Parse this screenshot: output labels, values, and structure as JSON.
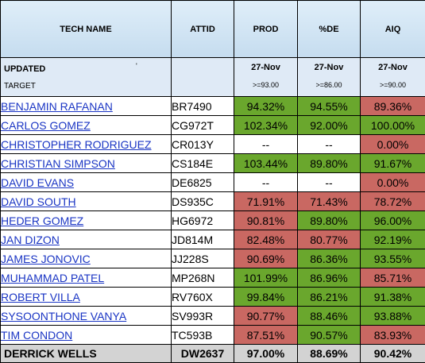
{
  "headers": {
    "tech_name": "TECH NAME",
    "attid": "ATTID",
    "prod": "PROD",
    "de": "%DE",
    "aiq": "AIQ"
  },
  "updated": {
    "label": "UPDATED",
    "target_label": "TARGET",
    "mark": "'",
    "prod_date": "27-Nov",
    "de_date": "27-Nov",
    "aiq_date": "27-Nov",
    "prod_target": ">=93.00",
    "de_target": ">=86.00",
    "aiq_target": ">=90.00"
  },
  "rows": [
    {
      "name": "BENJAMIN RAFANAN",
      "attid": "BR7490",
      "prod": "94.32%",
      "de": "94.55%",
      "aiq": "89.36%"
    },
    {
      "name": "CARLOS GOMEZ",
      "attid": "CG972T",
      "prod": "102.34%",
      "de": "92.00%",
      "aiq": "100.00%"
    },
    {
      "name": "CHRISTOPHER RODRIGUEZ",
      "attid": "CR013Y",
      "prod": "--",
      "de": "--",
      "aiq": "0.00%"
    },
    {
      "name": "CHRISTIAN SIMPSON",
      "attid": "CS184E",
      "prod": "103.44%",
      "de": "89.80%",
      "aiq": "91.67%"
    },
    {
      "name": "DAVID EVANS",
      "attid": "DE6825",
      "prod": "--",
      "de": "--",
      "aiq": "0.00%"
    },
    {
      "name": "DAVID SOUTH",
      "attid": "DS935C",
      "prod": "71.91%",
      "de": "71.43%",
      "aiq": "78.72%"
    },
    {
      "name": "HEDER GOMEZ",
      "attid": "HG6972",
      "prod": "90.81%",
      "de": "89.80%",
      "aiq": "96.00%"
    },
    {
      "name": "JAN DIZON",
      "attid": "JD814M",
      "prod": "82.48%",
      "de": "80.77%",
      "aiq": "92.19%"
    },
    {
      "name": "JAMES JONOVIC",
      "attid": "JJ228S",
      "prod": "90.69%",
      "de": "86.36%",
      "aiq": "93.55%"
    },
    {
      "name": "MUHAMMAD PATEL",
      "attid": "MP268N",
      "prod": "101.99%",
      "de": "86.96%",
      "aiq": "85.71%"
    },
    {
      "name": "ROBERT VILLA",
      "attid": "RV760X",
      "prod": "99.84%",
      "de": "86.21%",
      "aiq": "91.38%"
    },
    {
      "name": "SYSOONTHONE VANYA",
      "attid": "SV993R",
      "prod": "90.77%",
      "de": "88.46%",
      "aiq": "93.88%"
    },
    {
      "name": "TIM CONDON",
      "attid": "TC593B",
      "prod": "87.51%",
      "de": "90.57%",
      "aiq": "83.93%"
    }
  ],
  "cell_colors": {
    "green": "#6aa72d",
    "red": "#c96862",
    "white": "#ffffff"
  },
  "total": {
    "name": "DERRICK WELLS",
    "attid": "DW2637",
    "prod": "97.00%",
    "de": "88.69%",
    "aiq": "90.42%"
  }
}
